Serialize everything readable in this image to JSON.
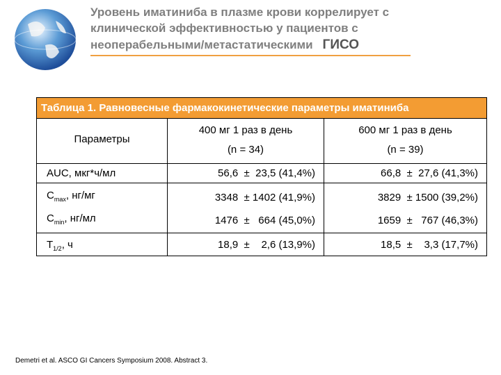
{
  "header": {
    "title_lines": [
      "Уровень иматиниба в плазме крови коррелирует с",
      "клинической эффективностью у пациентов с",
      "неоперабельными/метастатическими"
    ],
    "title_emphasis": "ГИСО"
  },
  "table": {
    "caption": "Таблица 1. Равновесные фармакокинетические параметры иматиниба",
    "columns": [
      {
        "label": "Параметры"
      },
      {
        "label": "400 мг 1 раз в день",
        "n": "(n = 34)"
      },
      {
        "label": "600 мг 1 раз в день",
        "n": "(n = 39)"
      }
    ],
    "rows": [
      {
        "param": {
          "main": "AUC, мкг*ч/мл"
        },
        "values": [
          "56,6  ±  23,5 (41,4%)",
          "66,8  ±  27,6 (41,3%)"
        ]
      },
      {
        "param": {
          "main": "C",
          "sub": "max",
          "rest": ", нг/мг"
        },
        "values": [
          "3348  ± 1402 (41,9%)",
          "3829  ± 1500 (39,2%)"
        ]
      },
      {
        "param": {
          "main": "C",
          "sub": "min",
          "rest": ", нг/мл"
        },
        "values": [
          "1476  ±   664 (45,0%)",
          "1659  ±   767 (46,3%)"
        ]
      },
      {
        "param": {
          "main": "T",
          "sub": "1/2",
          "rest": ", ч"
        },
        "values": [
          "18,9  ±    2,6 (13,9%)",
          "18,5  ±    3,3 (17,7%)"
        ]
      }
    ]
  },
  "footnote": "Demetri et al. ASCO GI Cancers Symposium 2008. Abstract 3."
}
